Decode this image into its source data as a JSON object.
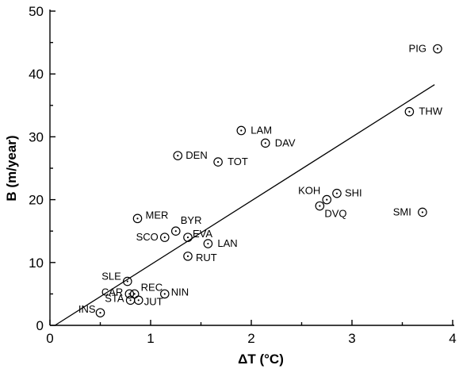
{
  "chart_data": {
    "type": "scatter",
    "title": "",
    "xlabel": "ΔT (°C)",
    "ylabel": "B (m/year)",
    "xlim": [
      0,
      4
    ],
    "ylim": [
      0,
      50
    ],
    "xticks": [
      "0",
      "1",
      "2",
      "3",
      "4"
    ],
    "yticks": [
      "0",
      "10",
      "20",
      "30",
      "40",
      "50"
    ],
    "grid": false,
    "points": [
      {
        "label": "PIG",
        "x": 3.85,
        "y": 44
      },
      {
        "label": "THW",
        "x": 3.57,
        "y": 34
      },
      {
        "label": "LAM",
        "x": 1.9,
        "y": 31
      },
      {
        "label": "DAV",
        "x": 2.14,
        "y": 29
      },
      {
        "label": "DEN",
        "x": 1.27,
        "y": 27
      },
      {
        "label": "TOT",
        "x": 1.67,
        "y": 26
      },
      {
        "label": "SHI",
        "x": 2.85,
        "y": 21
      },
      {
        "label": "KOH",
        "x": 2.75,
        "y": 20
      },
      {
        "label": "DVQ",
        "x": 2.68,
        "y": 19
      },
      {
        "label": "SMI",
        "x": 3.7,
        "y": 18
      },
      {
        "label": "MER",
        "x": 0.87,
        "y": 17
      },
      {
        "label": "BYR",
        "x": 1.25,
        "y": 15
      },
      {
        "label": "EVA",
        "x": 1.37,
        "y": 14
      },
      {
        "label": "SCO",
        "x": 1.14,
        "y": 14
      },
      {
        "label": "LAN",
        "x": 1.57,
        "y": 13
      },
      {
        "label": "RUT",
        "x": 1.37,
        "y": 11
      },
      {
        "label": "SLE",
        "x": 0.77,
        "y": 7
      },
      {
        "label": "REC",
        "x": 0.84,
        "y": 5
      },
      {
        "label": "CAR",
        "x": 0.79,
        "y": 5
      },
      {
        "label": "NIN",
        "x": 1.14,
        "y": 5
      },
      {
        "label": "STA",
        "x": 0.8,
        "y": 4
      },
      {
        "label": "JUT",
        "x": 0.88,
        "y": 4
      },
      {
        "label": "INS",
        "x": 0.5,
        "y": 2
      }
    ],
    "fit_line": {
      "x": [
        0.05,
        3.82
      ],
      "y": [
        0,
        38.3
      ]
    }
  }
}
